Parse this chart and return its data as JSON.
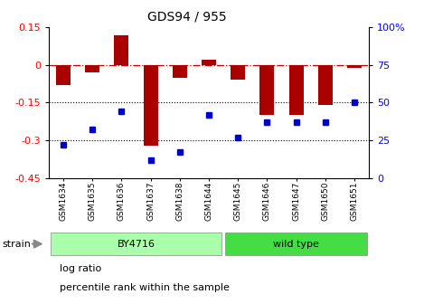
{
  "title": "GDS94 / 955",
  "samples": [
    "GSM1634",
    "GSM1635",
    "GSM1636",
    "GSM1637",
    "GSM1638",
    "GSM1644",
    "GSM1645",
    "GSM1646",
    "GSM1647",
    "GSM1650",
    "GSM1651"
  ],
  "log_ratio": [
    -0.08,
    -0.03,
    0.12,
    -0.32,
    -0.05,
    0.02,
    -0.06,
    -0.2,
    -0.2,
    -0.16,
    -0.01
  ],
  "percentile_rank": [
    22,
    32,
    44,
    12,
    17,
    42,
    27,
    37,
    37,
    37,
    50
  ],
  "n_by4716": 6,
  "n_wildtype": 5,
  "by4716_label": "BY4716",
  "wildtype_label": "wild type",
  "by4716_color": "#AAFFAA",
  "wildtype_color": "#44DD44",
  "strain_label": "strain",
  "ylim_left": [
    -0.45,
    0.15
  ],
  "ylim_right": [
    0,
    100
  ],
  "bar_color": "#AA0000",
  "dot_color": "#0000CC",
  "ref_line_color": "#CC0000",
  "dotted_line_color": "#000000",
  "background_color": "#ffffff",
  "left_ytick_vals": [
    0.15,
    0,
    -0.15,
    -0.3,
    -0.45
  ],
  "left_ytick_labels": [
    "0.15",
    "0",
    "-0.15",
    "-0.3",
    "-0.45"
  ],
  "right_ytick_vals": [
    100,
    75,
    50,
    25,
    0
  ],
  "right_ytick_labels": [
    "100%",
    "75",
    "50",
    "25",
    "0"
  ],
  "grid_lines": [
    -0.15,
    -0.3
  ],
  "legend_items": [
    "log ratio",
    "percentile rank within the sample"
  ],
  "legend_colors": [
    "#AA0000",
    "#0000CC"
  ]
}
